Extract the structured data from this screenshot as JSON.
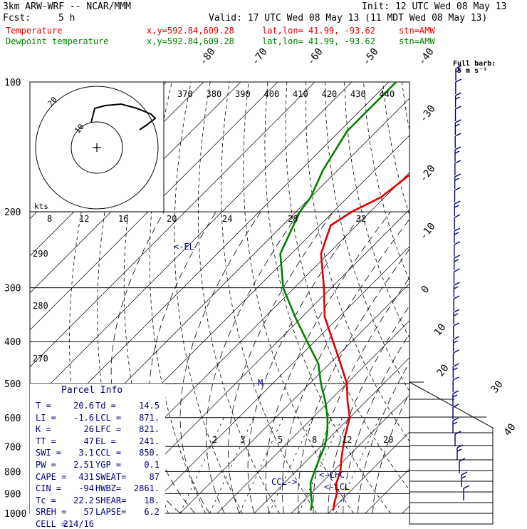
{
  "header": {
    "model": "3km ARW-WRF -- NCAR/MMM",
    "init": "Init: 12 UTC Wed 08 May 13",
    "fcst_label": "Fcst:",
    "fcst_value": "5 h",
    "valid": "Valid: 17 UTC Wed 08 May 13 (11 MDT Wed 08 May 13)"
  },
  "legend": [
    {
      "name": "Temperature",
      "xy": "x,y=592.84,609.28",
      "latlon": "lat,lon= 41.99, -93.62",
      "stn": "stn=AMW",
      "color": "#e00000"
    },
    {
      "name": "Dewpoint temperature",
      "xy": "x,y=592.84,609.28",
      "latlon": "lat,lon= 41.99, -93.62",
      "stn": "stn=AMW",
      "color": "#008000"
    }
  ],
  "barb_key": {
    "title": "Full barb:",
    "value": "5 m s⁻¹"
  },
  "hodograph": {
    "units": "kts",
    "ring_labels": [
      "20",
      "10"
    ]
  },
  "parcel_info": {
    "title": "Parcel Info",
    "rows": [
      [
        "T  =",
        "20.6",
        "Td =",
        "14.5"
      ],
      [
        "LI =",
        "-1.6",
        "LCL =",
        "871."
      ],
      [
        "K  =",
        "26",
        "LFC =",
        "821."
      ],
      [
        "TT =",
        "47",
        "EL  =",
        "241."
      ],
      [
        "SWI =",
        "3.1",
        "CCL =",
        "850."
      ],
      [
        "PW =",
        "2.51",
        "YGP =",
        "0.1"
      ],
      [
        "CAPE =",
        "431",
        "SWEAT=",
        "87"
      ],
      [
        "CIN =",
        "-94",
        "HWBZ=",
        "2861."
      ],
      [
        "Tc =",
        "22.2",
        "SHEAR=",
        "18."
      ],
      [
        "SREH =",
        "57",
        "LAPSE=",
        "6.2"
      ],
      [
        "CELL =",
        "214/16",
        "",
        ""
      ]
    ]
  },
  "annotations": {
    "el": "<-EL",
    "lfc": "<-LFC",
    "lcl": "<-LCL",
    "ccl": "CCL->",
    "m": "M"
  },
  "colors": {
    "temperature": "#e00000",
    "dewpoint": "#008000",
    "ink": "#000080",
    "isobar": "#000000"
  },
  "chart_data": {
    "type": "line",
    "title": "",
    "xlabel": "",
    "ylabel": "",
    "pressure_levels": [
      100,
      200,
      300,
      400,
      500,
      600,
      700,
      800,
      900,
      1000
    ],
    "isotherm_labels": [
      "-80",
      "-70",
      "-60",
      "-50",
      "-40",
      "-30",
      "-20",
      "-10",
      "0",
      "10",
      "20",
      "30",
      "40"
    ],
    "theta_labels": [
      "370",
      "380",
      "390",
      "400",
      "410",
      "420",
      "430",
      "440"
    ],
    "theta_low_labels": [
      "290",
      "280",
      "270"
    ],
    "mixing_ratio_labels": [
      "2",
      "3",
      "5",
      "8",
      "12",
      "20"
    ],
    "thetae_labels": [
      "8",
      "12",
      "16",
      "20",
      "24",
      "28",
      "32"
    ],
    "series": [
      {
        "name": "Temperature",
        "color": "#e00000",
        "points": [
          [
            100,
            -42
          ],
          [
            130,
            -46
          ],
          [
            160,
            -49
          ],
          [
            185,
            -51
          ],
          [
            200,
            -55
          ],
          [
            215,
            -57
          ],
          [
            250,
            -52
          ],
          [
            300,
            -42
          ],
          [
            350,
            -34
          ],
          [
            400,
            -25
          ],
          [
            450,
            -17
          ],
          [
            500,
            -10
          ],
          [
            550,
            -5
          ],
          [
            600,
            0
          ],
          [
            650,
            3
          ],
          [
            700,
            6
          ],
          [
            750,
            9
          ],
          [
            800,
            12
          ],
          [
            850,
            14
          ],
          [
            900,
            17
          ],
          [
            950,
            19
          ],
          [
            985,
            20.6
          ]
        ]
      },
      {
        "name": "Dewpoint temperature",
        "color": "#008000",
        "points": [
          [
            100,
            -78
          ],
          [
            130,
            -78
          ],
          [
            160,
            -74
          ],
          [
            185,
            -70
          ],
          [
            200,
            -69
          ],
          [
            250,
            -63
          ],
          [
            300,
            -53
          ],
          [
            350,
            -42
          ],
          [
            400,
            -32
          ],
          [
            450,
            -23
          ],
          [
            500,
            -17
          ],
          [
            550,
            -11
          ],
          [
            600,
            -6
          ],
          [
            650,
            -2
          ],
          [
            700,
            1
          ],
          [
            750,
            3
          ],
          [
            800,
            5
          ],
          [
            850,
            7
          ],
          [
            900,
            10
          ],
          [
            950,
            13
          ],
          [
            985,
            14.5
          ]
        ]
      }
    ],
    "wind_barb_levels": 32,
    "grid": true
  }
}
